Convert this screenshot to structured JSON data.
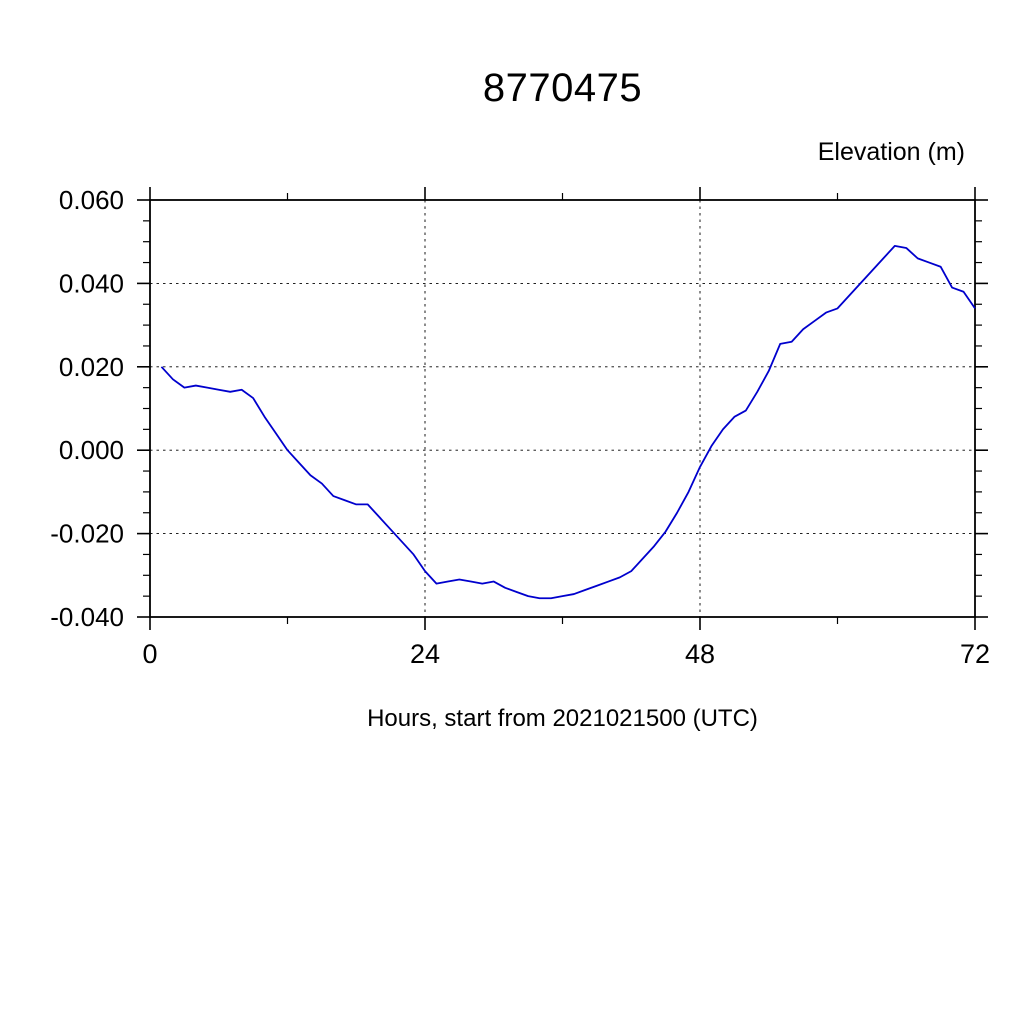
{
  "chart_data": {
    "type": "line",
    "title": "8770475",
    "ylabel": "Elevation (m)",
    "xlabel": "Hours, start from 2021021500 (UTC)",
    "xlim": [
      0,
      72
    ],
    "ylim": [
      -0.04,
      0.06
    ],
    "x_major_ticks": [
      0,
      24,
      48,
      72
    ],
    "x_tick_labels": [
      "0",
      "24",
      "48",
      "72"
    ],
    "x_minor_step": 12,
    "y_major_ticks": [
      -0.04,
      -0.02,
      0.0,
      0.02,
      0.04,
      0.06
    ],
    "y_tick_labels": [
      "-0.040",
      "-0.020",
      "0.000",
      "0.020",
      "0.040",
      "0.060"
    ],
    "y_minor_step": 0.005,
    "grid": true,
    "grid_style": "dashed",
    "legend": "none",
    "line_color": "#0000cd",
    "series": [
      {
        "name": "elevation",
        "x": [
          1,
          2,
          3,
          4,
          5,
          6,
          7,
          8,
          9,
          10,
          11,
          12,
          13,
          14,
          15,
          16,
          17,
          18,
          19,
          20,
          21,
          22,
          23,
          24,
          25,
          26,
          27,
          28,
          29,
          30,
          31,
          32,
          33,
          34,
          35,
          36,
          37,
          38,
          39,
          40,
          41,
          42,
          43,
          44,
          45,
          46,
          47,
          48,
          49,
          50,
          51,
          52,
          53,
          54,
          55,
          56,
          57,
          58,
          59,
          60,
          61,
          62,
          63,
          64,
          65,
          66,
          67,
          68,
          69,
          70,
          71,
          72
        ],
        "y": [
          0.02,
          0.017,
          0.015,
          0.0155,
          0.015,
          0.0145,
          0.014,
          0.0145,
          0.0125,
          0.008,
          0.004,
          0.0,
          -0.003,
          -0.006,
          -0.008,
          -0.011,
          -0.012,
          -0.013,
          -0.013,
          -0.016,
          -0.019,
          -0.022,
          -0.025,
          -0.029,
          -0.032,
          -0.0315,
          -0.031,
          -0.0315,
          -0.032,
          -0.0315,
          -0.033,
          -0.034,
          -0.035,
          -0.0355,
          -0.0355,
          -0.035,
          -0.0345,
          -0.0335,
          -0.0325,
          -0.0315,
          -0.0305,
          -0.029,
          -0.026,
          -0.023,
          -0.0195,
          -0.015,
          -0.01,
          -0.004,
          0.001,
          0.005,
          0.008,
          0.0095,
          0.014,
          0.019,
          0.0255,
          0.026,
          0.029,
          0.031,
          0.033,
          0.034,
          0.037,
          0.04,
          0.043,
          0.046,
          0.049,
          0.0485,
          0.046,
          0.045,
          0.044,
          0.039,
          0.038,
          0.034
        ]
      }
    ]
  }
}
